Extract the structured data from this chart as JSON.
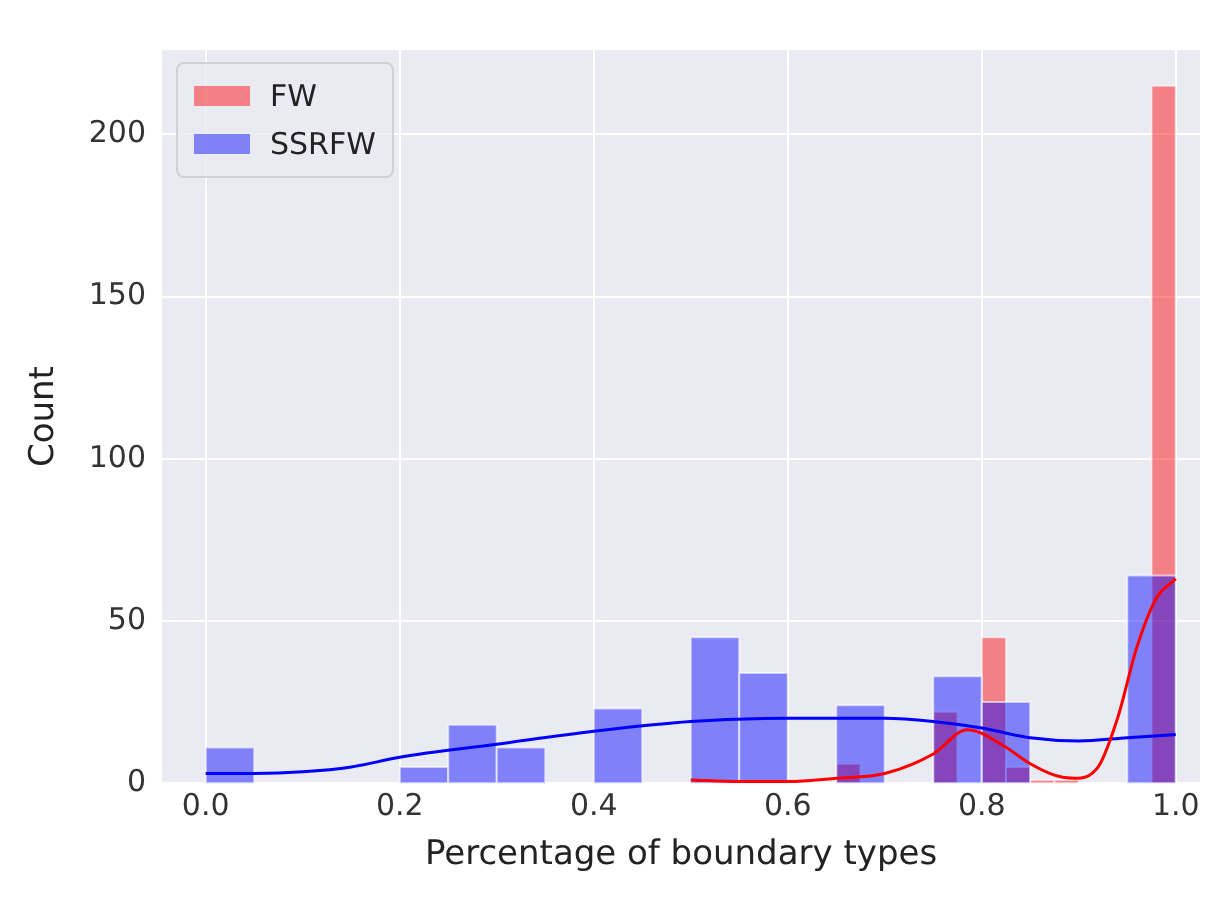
{
  "chart_data": {
    "type": "histogram",
    "xlabel": "Percentage of boundary types",
    "ylabel": "Count",
    "xlim": [
      -0.045,
      1.025
    ],
    "ylim": [
      0,
      226
    ],
    "xticks": [
      {
        "value": 0,
        "label": "0.0"
      },
      {
        "value": 0.2,
        "label": "0.2"
      },
      {
        "value": 0.4,
        "label": "0.4"
      },
      {
        "value": 0.6,
        "label": "0.6"
      },
      {
        "value": 0.8,
        "label": "0.8"
      },
      {
        "value": 1,
        "label": "1.0"
      }
    ],
    "yticks": [
      0,
      50,
      100,
      150,
      200
    ],
    "grid": true,
    "legend": "top left",
    "series": [
      {
        "name": "FW",
        "color": "#ff0000",
        "bins": [
          0.5,
          0.525,
          0.55,
          0.575,
          0.6,
          0.625,
          0.65,
          0.675,
          0.7,
          0.725,
          0.75,
          0.775,
          0.8,
          0.825,
          0.85,
          0.875,
          0.9,
          0.925,
          0.95,
          0.975,
          1.0
        ],
        "values": [
          1,
          0,
          0,
          0,
          0,
          0,
          6,
          0,
          0,
          0,
          22,
          0,
          45,
          5,
          1,
          1,
          0,
          0,
          0,
          215
        ]
      },
      {
        "name": "SSRFW",
        "color": "#0000ff",
        "bins": [
          0,
          0.05,
          0.1,
          0.15,
          0.2,
          0.25,
          0.3,
          0.35,
          0.4,
          0.45,
          0.5,
          0.55,
          0.6,
          0.65,
          0.7,
          0.75,
          0.8,
          0.85,
          0.9,
          0.95,
          1.0
        ],
        "values": [
          11,
          0,
          0,
          0,
          5,
          18,
          11,
          0,
          23,
          0,
          45,
          34,
          0,
          24,
          0,
          33,
          25,
          0,
          0,
          64
        ]
      },
      {
        "type": "line",
        "color": "#ff0000",
        "x": [
          0.5,
          0.55,
          0.6,
          0.65,
          0.7,
          0.75,
          0.785,
          0.82,
          0.85,
          0.875,
          0.895,
          0.92,
          0.94,
          0.96,
          0.98,
          1.0
        ],
        "values": [
          1,
          0.5,
          0.5,
          1.5,
          3,
          9,
          16.5,
          12,
          6,
          2.5,
          1.5,
          5,
          20,
          42,
          57,
          63
        ]
      },
      {
        "type": "line",
        "color": "#0000ff",
        "x": [
          0,
          0.05,
          0.1,
          0.15,
          0.2,
          0.3,
          0.4,
          0.5,
          0.6,
          0.7,
          0.75,
          0.8,
          0.85,
          0.9,
          0.95,
          1.0
        ],
        "values": [
          3,
          3,
          3.5,
          5,
          8,
          12,
          16,
          19,
          20,
          20,
          19,
          17,
          14,
          13,
          14,
          15
        ]
      }
    ]
  }
}
